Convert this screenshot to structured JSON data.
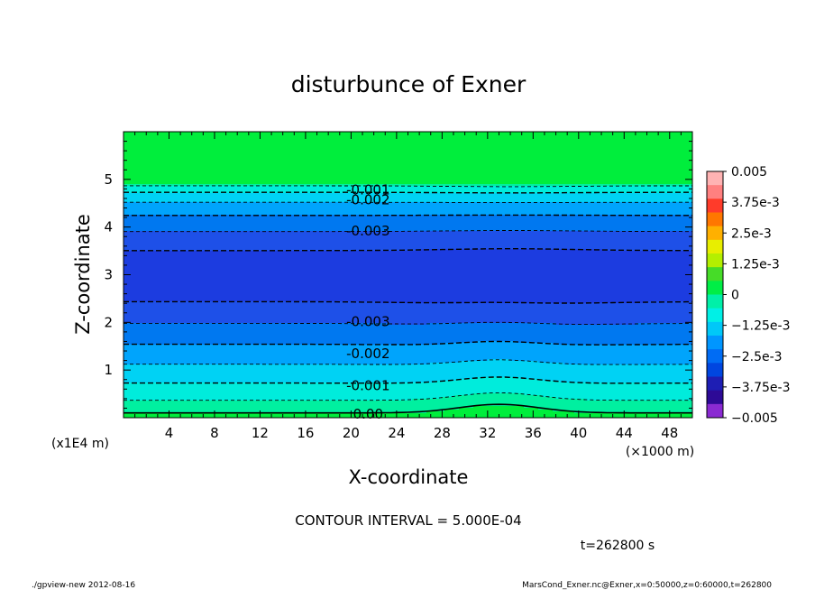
{
  "chart_data": {
    "type": "contour",
    "title": "disturbunce of Exner",
    "xlabel": "X-coordinate",
    "ylabel": "Z-coordinate",
    "x_unit": "(×1000 m)",
    "y_unit": "(x1E4 m)",
    "xlim": [
      0,
      50
    ],
    "ylim": [
      0,
      6
    ],
    "x_ticks": [
      4,
      8,
      12,
      16,
      20,
      24,
      28,
      32,
      36,
      40,
      44,
      48
    ],
    "y_ticks": [
      1,
      2,
      3,
      4,
      5
    ],
    "contour_interval_text": "CONTOUR INTERVAL = 5.000E-04",
    "time_text": "t=262800 s",
    "contour_labels": [
      {
        "text": "-0.001",
        "x": 21.5,
        "y": 4.78
      },
      {
        "text": "-0.002",
        "x": 21.5,
        "y": 4.57
      },
      {
        "text": "-0.003",
        "x": 21.5,
        "y": 3.92
      },
      {
        "text": "-0.003",
        "x": 21.5,
        "y": 2.02
      },
      {
        "text": "-0.002",
        "x": 21.5,
        "y": 1.34
      },
      {
        "text": "-0.001",
        "x": 21.5,
        "y": 0.67
      },
      {
        "text": "0.00",
        "x": 21.5,
        "y": 0.08
      }
    ],
    "colorbar": {
      "levels": [
        "0.005",
        "3.75e-3",
        "2.5e-3",
        "1.25e-3",
        "0",
        "−1.25e-3",
        "−2.5e-3",
        "−3.75e-3",
        "−0.005"
      ],
      "colors": [
        "#ffb3b3",
        "#ff8080",
        "#ff3b2a",
        "#ff7700",
        "#ffb000",
        "#e8ee00",
        "#b4ef00",
        "#46dc28",
        "#00ee46",
        "#00f0a8",
        "#00f0e6",
        "#00c8f8",
        "#0096ff",
        "#006cf4",
        "#0046e0",
        "#1e1eb4",
        "#2d0a96",
        "#8a2ad2"
      ]
    }
  },
  "footer": {
    "left": "./gpview-new   2012-08-16",
    "right": "MarsCond_Exner.nc@Exner,x=0:50000,z=0:60000,t=262800"
  }
}
